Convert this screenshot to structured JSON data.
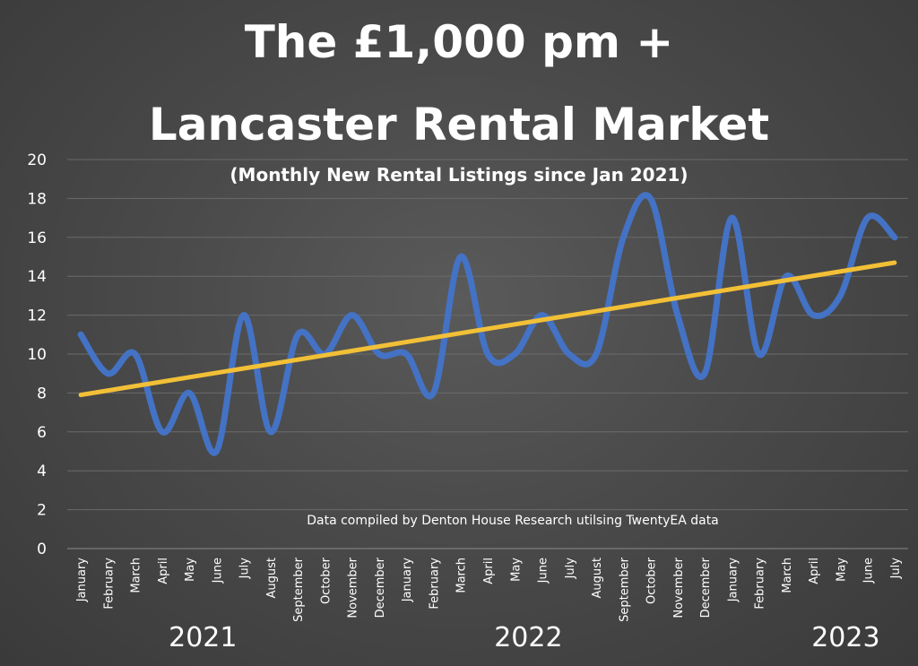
{
  "chart_data": {
    "type": "line",
    "title_line1": "The £1,000 pm +",
    "title_line2": "Lancaster Rental Market",
    "subtitle": "(Monthly New Rental Listings since Jan 2021)",
    "annotation": "Data compiled by Denton House Research utilsing TwentyEA data",
    "categories": [
      "January",
      "February",
      "March",
      "April",
      "May",
      "June",
      "July",
      "August",
      "September",
      "October",
      "November",
      "December",
      "January",
      "February",
      "March",
      "April",
      "May",
      "June",
      "July",
      "August",
      "September",
      "October",
      "November",
      "December",
      "January",
      "February",
      "March",
      "April",
      "May",
      "June",
      "July"
    ],
    "year_labels": [
      "2021",
      "2022",
      "2023"
    ],
    "y_ticks": [
      0,
      2,
      4,
      6,
      8,
      10,
      12,
      14,
      16,
      18,
      20
    ],
    "ylim": [
      0,
      20
    ],
    "series": [
      {
        "values": [
          11,
          9,
          10,
          6,
          8,
          5,
          12,
          6,
          11,
          10,
          12,
          10,
          10,
          8,
          15,
          10,
          10,
          12,
          10,
          10,
          16,
          18,
          12,
          9,
          17,
          10,
          14,
          12,
          13,
          17,
          16
        ],
        "color": "#4472c4"
      }
    ],
    "trendline": {
      "start": 7.9,
      "end": 14.7,
      "color": "#f2c037"
    },
    "grid": true
  }
}
